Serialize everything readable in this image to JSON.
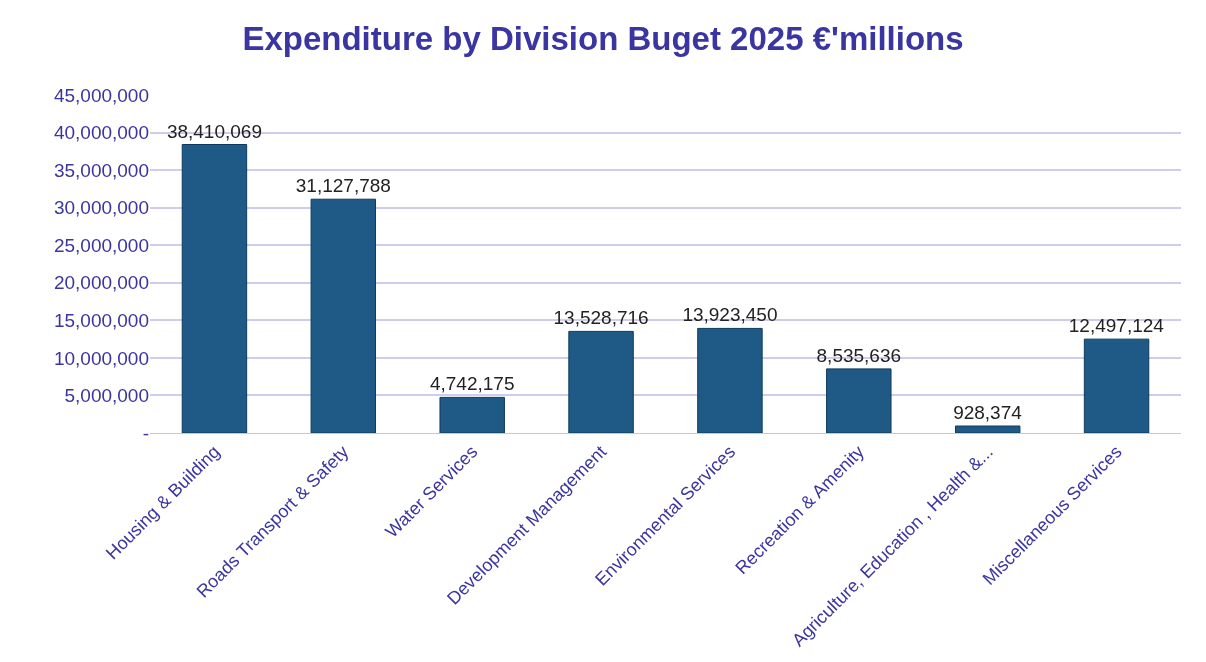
{
  "chart_data": {
    "type": "bar",
    "title": "Expenditure by Division Buget 2025 €'millions",
    "categories": [
      "Housing & Building",
      "Roads Transport & Safety",
      "Water Services",
      "Development Management",
      "Environmental Services",
      "Recreation & Amenity",
      "Agriculture, Education , Health &...",
      "Miscellaneous Services"
    ],
    "values": [
      38410069,
      31127788,
      4742175,
      13528716,
      13923450,
      8535636,
      928374,
      12497124
    ],
    "color": "#1f5a86",
    "ylim": [
      0,
      45000000
    ],
    "yticks": [
      {
        "value": 0,
        "label": "-"
      },
      {
        "value": 5000000,
        "label": "5,000,000"
      },
      {
        "value": 10000000,
        "label": "10,000,000"
      },
      {
        "value": 15000000,
        "label": "15,000,000"
      },
      {
        "value": 20000000,
        "label": "20,000,000"
      },
      {
        "value": 25000000,
        "label": "25,000,000"
      },
      {
        "value": 30000000,
        "label": "30,000,000"
      },
      {
        "value": 35000000,
        "label": "35,000,000"
      },
      {
        "value": 40000000,
        "label": "40,000,000"
      },
      {
        "value": 45000000,
        "label": "45,000,000"
      }
    ],
    "value_labels": [
      "38,410,069",
      "31,127,788",
      "4,742,175",
      "13,528,716",
      "13,923,450",
      "8,535,636",
      "928,374",
      "12,497,124"
    ],
    "grid": "y"
  }
}
